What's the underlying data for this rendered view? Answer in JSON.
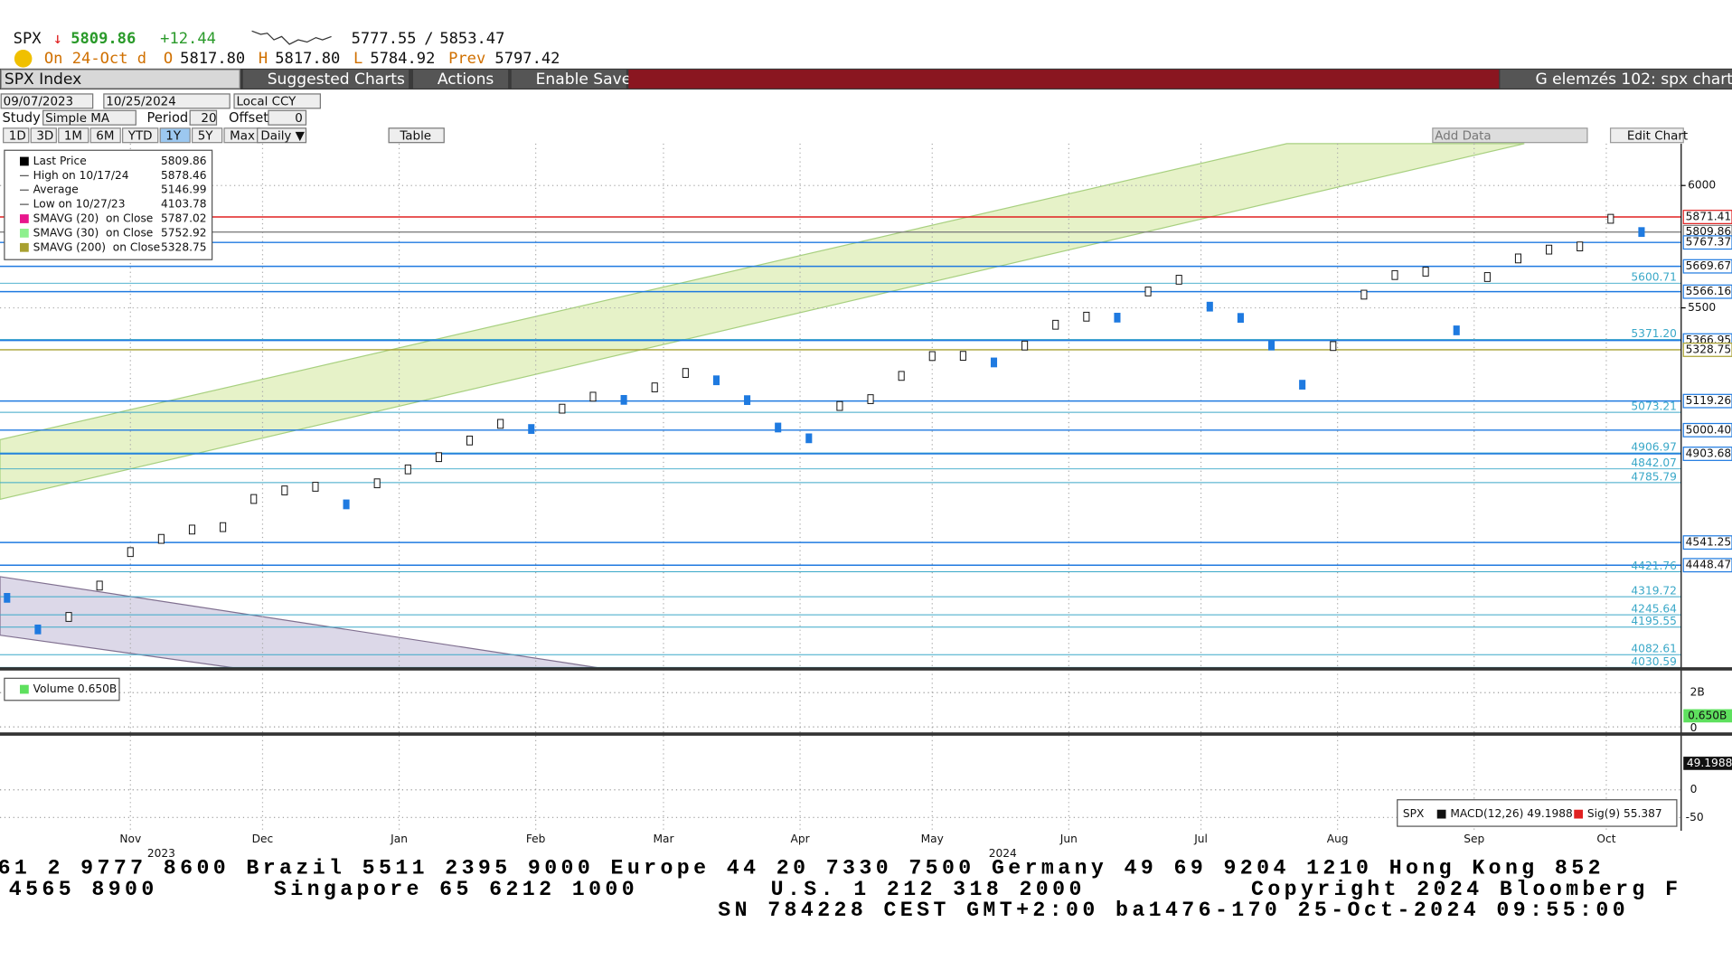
{
  "header": {
    "ticker": "SPX",
    "arrow": "↓",
    "last": "5809.86",
    "change": "+12.44",
    "range_low": "5777.55",
    "range_sep": "/",
    "range_high": "5853.47",
    "date_label": "On 24-Oct d",
    "open_label": "O",
    "open": "5817.80",
    "high_label": "H",
    "high": "5817.80",
    "low_label": "L",
    "low": "5784.92",
    "prev_label": "Prev",
    "prev": "5797.42"
  },
  "toolbar": {
    "security": "SPX Index",
    "suggested": "Suggested Charts",
    "actions": "Actions",
    "save": "Enable Save",
    "chart_name": "G elemzés 102: spx chart"
  },
  "controls": {
    "start": "09/07/2023",
    "end": "10/25/2024",
    "currency": "Local CCY",
    "study_label": "Study",
    "study": "Simple MA",
    "period_label": "Period",
    "period": "20",
    "offset_label": "Offset",
    "offset": "0",
    "ranges": [
      "1D",
      "3D",
      "1M",
      "6M",
      "YTD",
      "1Y",
      "5Y",
      "Max"
    ],
    "frequency": "Daily ▼",
    "table": "Table",
    "add_data": "Add Data",
    "edit": "Edit Chart"
  },
  "legend": [
    {
      "label": "Last Price",
      "value": "5809.86",
      "color": "#000000"
    },
    {
      "label": "High on 10/17/24",
      "value": "5878.46"
    },
    {
      "label": "Average",
      "value": "5146.99"
    },
    {
      "label": "Low on 10/27/23",
      "value": "4103.78"
    },
    {
      "label": "SMAVG (20)  on Close",
      "value": "5787.02",
      "color": "#e8168c"
    },
    {
      "label": "SMAVG (30)  on Close",
      "value": "5752.92",
      "color": "#8ef08e"
    },
    {
      "label": "SMAVG (200)  on Close",
      "value": "5328.75",
      "color": "#a8a030"
    }
  ],
  "chart_data": {
    "type": "candle",
    "title": "SPX Index",
    "x": [
      17,
      24,
      31,
      38,
      45,
      52,
      59,
      66,
      73,
      80,
      87,
      94,
      101,
      108,
      115,
      122,
      129,
      136,
      143,
      150,
      157,
      164,
      171,
      178,
      185,
      192,
      199,
      206,
      213,
      220,
      227,
      234,
      241,
      248,
      255,
      262,
      269,
      276,
      283,
      290,
      297,
      304,
      311,
      318,
      325,
      332,
      339,
      346,
      353,
      360,
      367,
      374,
      381,
      388
    ],
    "series": [
      {
        "name": "Last Price",
        "color": "#1f7ae0",
        "values": [
          4315,
          4186,
          4237,
          4365,
          4502,
          4556,
          4594,
          4604,
          4719,
          4754,
          4769,
          4697,
          4783,
          4840,
          4890,
          4958,
          5026,
          5005,
          5088,
          5137,
          5124,
          5175,
          5234,
          5204,
          5123,
          5011,
          4967,
          5099,
          5127,
          5222,
          5303,
          5304,
          5277,
          5346,
          5431,
          5464,
          5460,
          5567,
          5615,
          5505,
          5459,
          5346,
          5186,
          5344,
          5554,
          5634,
          5648,
          5408,
          5626,
          5702,
          5738,
          5751,
          5864,
          5809.86
        ]
      }
    ],
    "xlim": [
      15.4,
      397
    ],
    "ylim": [
      4027,
      6171
    ],
    "yticks": [
      5500,
      6000
    ],
    "xticks": [
      {
        "value": 45,
        "label": "Nov"
      },
      {
        "value": 75,
        "label": "Dec"
      },
      {
        "value": 106,
        "label": "Jan"
      },
      {
        "value": 137,
        "label": "Feb"
      },
      {
        "value": 166,
        "label": "Mar"
      },
      {
        "value": 197,
        "label": "Apr"
      },
      {
        "value": 227,
        "label": "May"
      },
      {
        "value": 258,
        "label": "Jun"
      },
      {
        "value": 288,
        "label": "Jul"
      },
      {
        "value": 319,
        "label": "Aug"
      },
      {
        "value": 350,
        "label": "Sep"
      },
      {
        "value": 380,
        "label": "Oct"
      }
    ],
    "years": [
      {
        "value": 52,
        "label": "2023"
      },
      {
        "value": 243,
        "label": "2024"
      }
    ],
    "grid": true,
    "axis_levels": [
      {
        "value": 5871.41,
        "label": "5871.41",
        "color": "#e02020"
      },
      {
        "value": 5809.86,
        "label": "5809.86",
        "color": "#808080"
      },
      {
        "value": 5767.37,
        "label": "5767.37",
        "color": "#1f7ae0"
      },
      {
        "value": 5669.67,
        "label": "5669.67",
        "color": "#1f7ae0"
      },
      {
        "value": 5566.16,
        "label": "5566.16",
        "color": "#1f7ae0"
      },
      {
        "value": 5366.95,
        "label": "5366.95",
        "color": "#1f7ae0"
      },
      {
        "value": 5328.75,
        "label": "5328.75",
        "color": "#a8a030"
      },
      {
        "value": 5119.26,
        "label": "5119.26",
        "color": "#1f7ae0"
      },
      {
        "value": 5000.4,
        "label": "5000.40",
        "color": "#1f7ae0"
      },
      {
        "value": 4903.68,
        "label": "4903.68",
        "color": "#1f7ae0"
      },
      {
        "value": 4541.25,
        "label": "4541.25",
        "color": "#1f7ae0"
      },
      {
        "value": 4448.47,
        "label": "4448.47",
        "color": "#1f7ae0"
      }
    ],
    "line_levels": [
      {
        "value": 5600.71,
        "label": "5600.71"
      },
      {
        "value": 5371.2,
        "label": "5371.20"
      },
      {
        "value": 5073.21,
        "label": "5073.21"
      },
      {
        "value": 4906.97,
        "label": "4906.97"
      },
      {
        "value": 4842.07,
        "label": "4842.07"
      },
      {
        "value": 4785.79,
        "label": "4785.79"
      },
      {
        "value": 4421.76,
        "label": "4421.76"
      },
      {
        "value": 4319.72,
        "label": "4319.72"
      },
      {
        "value": 4245.64,
        "label": "4245.64"
      },
      {
        "value": 4195.55,
        "label": "4195.55"
      },
      {
        "value": 4082.61,
        "label": "4082.61"
      },
      {
        "value": 4030.59,
        "label": "4030.59"
      }
    ],
    "level_color": "#3aa8c8"
  },
  "volume_panel": {
    "legend": "Volume 0.650B",
    "tick_top": "2B",
    "last": "0.650B",
    "tick_zero": "0"
  },
  "macd_panel": {
    "ticker": "SPX",
    "macd": "MACD(12,26) 49.1988",
    "signal": "Sig(9) 55.387",
    "last": "49.1988",
    "tick_zero": "0",
    "tick_low": "-50"
  },
  "footer": [
    "61 2 9777 8600 Brazil 5511 2395 9000 Europe 44 20 7330 7500 Germany 49 69 9204 1210 Hong Kong 852",
    "4565 8900       Singapore 65 6212 1000        U.S. 1 212 318 2000          Copyright 2024 Bloomberg F",
    "SN 784228 CEST GMT+2:00 ba1476-170 25-Oct-2024 09:55:00"
  ]
}
